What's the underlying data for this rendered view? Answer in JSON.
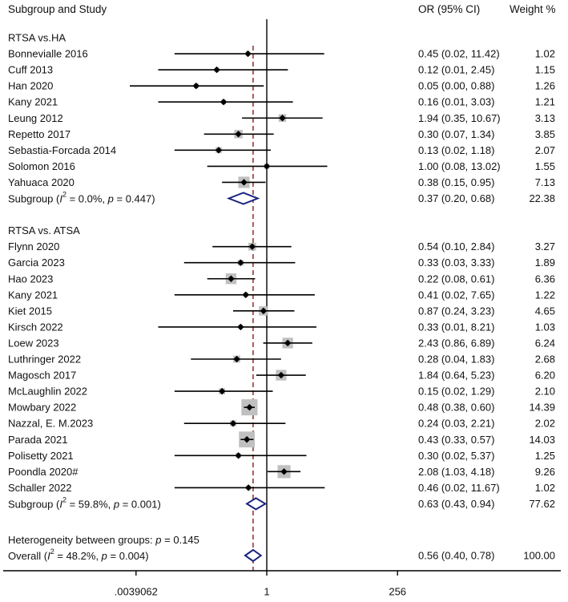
{
  "header": {
    "study_col": "Subgroup and Study",
    "or_col": "OR (95% CI)",
    "weight_col": "Weight %"
  },
  "chart_data": {
    "type": "forest",
    "x_scale": "log2",
    "xlim": [
      0.0009765625,
      16384
    ],
    "x_ticks": [
      ".0039062",
      "1",
      "256"
    ],
    "null_line": 1,
    "overall_line": 0.56,
    "colors": {
      "ci": "#000000",
      "box": "#c0c0c0",
      "diamond": "#1a237e",
      "overall_line": "#8b1a1a"
    },
    "groups": [
      {
        "title": "RTSA vs.HA",
        "studies": [
          {
            "name": "Bonnevialle 2016",
            "or": 0.45,
            "lo": 0.02,
            "hi": 11.42,
            "ci_text": "0.45 (0.02, 11.42)",
            "weight": "1.02",
            "w": 1.02
          },
          {
            "name": "Cuff 2013",
            "or": 0.12,
            "lo": 0.01,
            "hi": 2.45,
            "ci_text": "0.12 (0.01, 2.45)",
            "weight": "1.15",
            "w": 1.15
          },
          {
            "name": "Han 2020",
            "or": 0.05,
            "lo": 0.003,
            "hi": 0.88,
            "ci_text": "0.05 (0.00, 0.88)",
            "weight": "1.26",
            "w": 1.26
          },
          {
            "name": "Kany 2021",
            "or": 0.16,
            "lo": 0.01,
            "hi": 3.03,
            "ci_text": "0.16 (0.01, 3.03)",
            "weight": "1.21",
            "w": 1.21
          },
          {
            "name": "Leung 2012",
            "or": 1.94,
            "lo": 0.35,
            "hi": 10.67,
            "ci_text": "1.94 (0.35, 10.67)",
            "weight": "3.13",
            "w": 3.13
          },
          {
            "name": "Repetto 2017",
            "or": 0.3,
            "lo": 0.07,
            "hi": 1.34,
            "ci_text": "0.30 (0.07, 1.34)",
            "weight": "3.85",
            "w": 3.85
          },
          {
            "name": "Sebastia-Forcada 2014",
            "or": 0.13,
            "lo": 0.02,
            "hi": 1.18,
            "ci_text": "0.13 (0.02, 1.18)",
            "weight": "2.07",
            "w": 2.07
          },
          {
            "name": "Solomon 2016",
            "or": 1.0,
            "lo": 0.08,
            "hi": 13.02,
            "ci_text": "1.00 (0.08, 13.02)",
            "weight": "1.55",
            "w": 1.55
          },
          {
            "name": "Yahuaca 2020",
            "or": 0.38,
            "lo": 0.15,
            "hi": 0.95,
            "ci_text": "0.38 (0.15, 0.95)",
            "weight": "7.13",
            "w": 7.13
          }
        ],
        "subgroup": {
          "label_pre": "Subgroup (",
          "i2_sym": "I",
          "i2_sup": "2",
          "label_mid": " = 0.0%, ",
          "p_sym": "p",
          "label_post": " = 0.447)",
          "or": 0.37,
          "lo": 0.2,
          "hi": 0.68,
          "ci_text": "0.37 (0.20, 0.68)",
          "weight": "22.38"
        }
      },
      {
        "title": "RTSA vs. ATSA",
        "studies": [
          {
            "name": "Flynn 2020",
            "or": 0.54,
            "lo": 0.1,
            "hi": 2.84,
            "ci_text": "0.54 (0.10, 2.84)",
            "weight": "3.27",
            "w": 3.27
          },
          {
            "name": "Garcia 2023",
            "or": 0.33,
            "lo": 0.03,
            "hi": 3.33,
            "ci_text": "0.33 (0.03, 3.33)",
            "weight": "1.89",
            "w": 1.89
          },
          {
            "name": "Hao 2023",
            "or": 0.22,
            "lo": 0.08,
            "hi": 0.61,
            "ci_text": "0.22 (0.08, 0.61)",
            "weight": "6.36",
            "w": 6.36
          },
          {
            "name": "Kany 2021",
            "or": 0.41,
            "lo": 0.02,
            "hi": 7.65,
            "ci_text": "0.41 (0.02, 7.65)",
            "weight": "1.22",
            "w": 1.22
          },
          {
            "name": "Kiet 2015",
            "or": 0.87,
            "lo": 0.24,
            "hi": 3.23,
            "ci_text": "0.87 (0.24, 3.23)",
            "weight": "4.65",
            "w": 4.65
          },
          {
            "name": "Kirsch 2022",
            "or": 0.33,
            "lo": 0.01,
            "hi": 8.21,
            "ci_text": "0.33 (0.01, 8.21)",
            "weight": "1.03",
            "w": 1.03
          },
          {
            "name": "Loew 2023",
            "or": 2.43,
            "lo": 0.86,
            "hi": 6.89,
            "ci_text": "2.43 (0.86, 6.89)",
            "weight": "6.24",
            "w": 6.24
          },
          {
            "name": "Luthringer 2022",
            "or": 0.28,
            "lo": 0.04,
            "hi": 1.83,
            "ci_text": "0.28 (0.04, 1.83)",
            "weight": "2.68",
            "w": 2.68
          },
          {
            "name": "Magosch 2017",
            "or": 1.84,
            "lo": 0.64,
            "hi": 5.23,
            "ci_text": "1.84 (0.64, 5.23)",
            "weight": "6.20",
            "w": 6.2
          },
          {
            "name": "McLaughlin 2022",
            "or": 0.15,
            "lo": 0.02,
            "hi": 1.29,
            "ci_text": "0.15 (0.02, 1.29)",
            "weight": "2.10",
            "w": 2.1
          },
          {
            "name": "Mowbary 2022",
            "or": 0.48,
            "lo": 0.38,
            "hi": 0.6,
            "ci_text": "0.48 (0.38, 0.60)",
            "weight": "14.39",
            "w": 14.39
          },
          {
            "name": "Nazzal, E. M.2023",
            "or": 0.24,
            "lo": 0.03,
            "hi": 2.21,
            "ci_text": "0.24 (0.03, 2.21)",
            "weight": "2.02",
            "w": 2.02
          },
          {
            "name": "Parada 2021",
            "or": 0.43,
            "lo": 0.33,
            "hi": 0.57,
            "ci_text": "0.43 (0.33, 0.57)",
            "weight": "14.03",
            "w": 14.03
          },
          {
            "name": "Polisetty 2021",
            "or": 0.3,
            "lo": 0.02,
            "hi": 5.37,
            "ci_text": "0.30 (0.02, 5.37)",
            "weight": "1.25",
            "w": 1.25
          },
          {
            "name": "Poondla 2020#",
            "or": 2.08,
            "lo": 1.03,
            "hi": 4.18,
            "ci_text": "2.08 (1.03, 4.18)",
            "weight": "9.26",
            "w": 9.26
          },
          {
            "name": "Schaller 2022",
            "or": 0.46,
            "lo": 0.02,
            "hi": 11.67,
            "ci_text": "0.46 (0.02, 11.67)",
            "weight": "1.02",
            "w": 1.02
          }
        ],
        "subgroup": {
          "label_pre": "Subgroup (",
          "i2_sym": "I",
          "i2_sup": "2",
          "label_mid": " = 59.8%, ",
          "p_sym": "p",
          "label_post": " = 0.001)",
          "or": 0.63,
          "lo": 0.43,
          "hi": 0.94,
          "ci_text": "0.63 (0.43, 0.94)",
          "weight": "77.62"
        }
      }
    ],
    "heterogeneity": {
      "pre": "Heterogeneity between groups: ",
      "p_sym": "p",
      "post": " = 0.145"
    },
    "overall": {
      "label_pre": "Overall (",
      "i2_sym": "I",
      "i2_sup": "2",
      "label_mid": " = 48.2%, ",
      "p_sym": "p",
      "label_post": " = 0.004)",
      "or": 0.56,
      "lo": 0.4,
      "hi": 0.78,
      "ci_text": "0.56 (0.40, 0.78)",
      "weight": "100.00"
    }
  }
}
